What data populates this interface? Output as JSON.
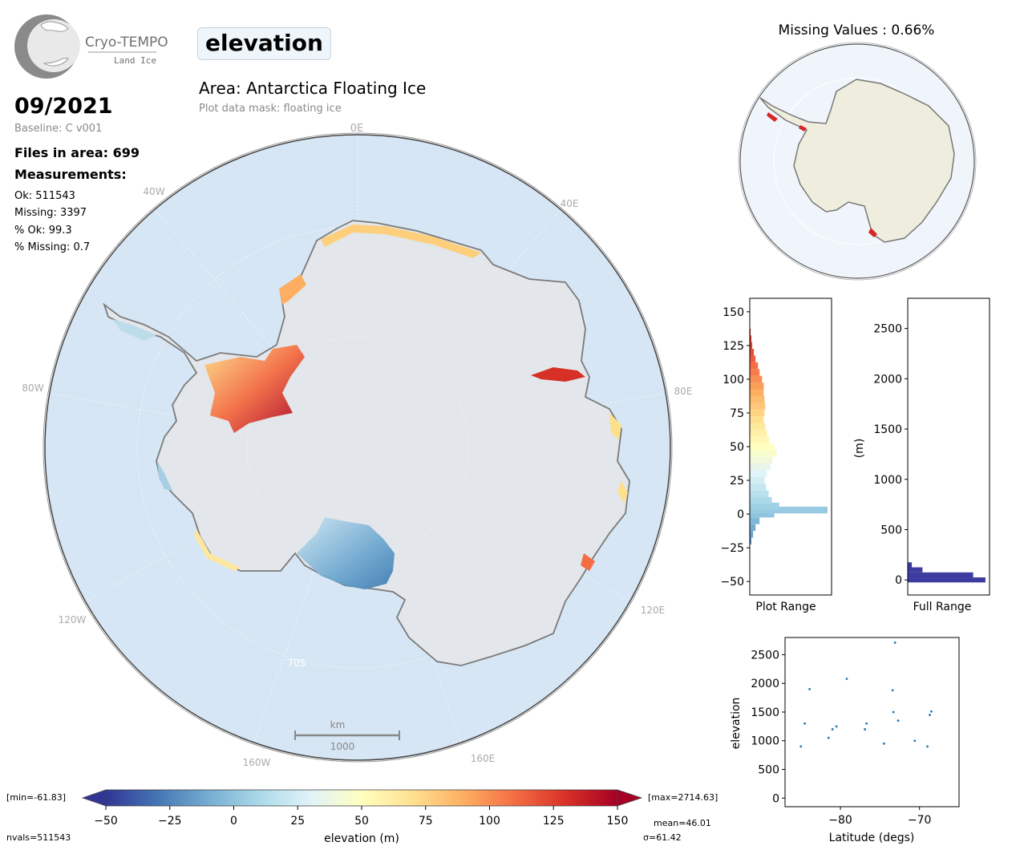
{
  "logo": {
    "name": "Cryo-TEMPO",
    "subtitle": "Land Ice"
  },
  "header": {
    "variable": "elevation",
    "area_title": "Area: Antarctica Floating Ice",
    "mask_note": "Plot data mask: floating ice"
  },
  "info": {
    "date": "09/2021",
    "baseline": "Baseline: C v001",
    "files": "Files in area: 699",
    "measurements_heading": "Measurements:",
    "ok": "Ok: 511543",
    "missing": "Missing: 3397",
    "pct_ok": "% Ok: 99.3",
    "pct_missing": "% Missing: 0.7"
  },
  "map": {
    "graticule_labels": [
      "0E",
      "40E",
      "80E",
      "120E",
      "160E",
      "160W",
      "120W",
      "80W",
      "40W",
      "70S"
    ],
    "scale_bar": {
      "unit": "km",
      "value": "1000"
    }
  },
  "inset_map": {
    "title": "Missing Values : 0.66%"
  },
  "colorbar": {
    "ticks": [
      "−50",
      "−25",
      "0",
      "25",
      "50",
      "75",
      "100",
      "125",
      "150"
    ],
    "label": "elevation (m)",
    "min_label": "[min=-61.83]",
    "max_label": "[max=2714.63]",
    "nvals": "nvals=511543",
    "mean": "mean=46.01",
    "sigma": "σ=61.42",
    "colors": [
      "#313695",
      "#4575b4",
      "#74add1",
      "#abd9e9",
      "#e0f3f8",
      "#ffffbf",
      "#fee090",
      "#fdae61",
      "#f46d43",
      "#d73027",
      "#a50026"
    ]
  },
  "chart_data": [
    {
      "type": "bar",
      "orientation": "horizontal",
      "xlabel": "Plot Range",
      "ylim": [
        -60,
        160
      ],
      "yticks": [
        "−50",
        "−25",
        "0",
        "25",
        "50",
        "75",
        "100",
        "125",
        "150"
      ],
      "bins": [
        {
          "y": -20,
          "count": 2
        },
        {
          "y": -15,
          "count": 4
        },
        {
          "y": -10,
          "count": 7
        },
        {
          "y": -5,
          "count": 12
        },
        {
          "y": 0,
          "count": 30
        },
        {
          "y": 3,
          "count": 95
        },
        {
          "y": 6,
          "count": 36
        },
        {
          "y": 10,
          "count": 27
        },
        {
          "y": 15,
          "count": 23
        },
        {
          "y": 20,
          "count": 20
        },
        {
          "y": 25,
          "count": 18
        },
        {
          "y": 30,
          "count": 21
        },
        {
          "y": 35,
          "count": 25
        },
        {
          "y": 40,
          "count": 28
        },
        {
          "y": 45,
          "count": 33
        },
        {
          "y": 50,
          "count": 30
        },
        {
          "y": 55,
          "count": 24
        },
        {
          "y": 60,
          "count": 21
        },
        {
          "y": 65,
          "count": 19
        },
        {
          "y": 70,
          "count": 17
        },
        {
          "y": 75,
          "count": 18
        },
        {
          "y": 80,
          "count": 19
        },
        {
          "y": 85,
          "count": 18
        },
        {
          "y": 90,
          "count": 17
        },
        {
          "y": 95,
          "count": 17
        },
        {
          "y": 100,
          "count": 15
        },
        {
          "y": 105,
          "count": 12
        },
        {
          "y": 110,
          "count": 10
        },
        {
          "y": 115,
          "count": 7
        },
        {
          "y": 120,
          "count": 5
        },
        {
          "y": 125,
          "count": 3
        },
        {
          "y": 130,
          "count": 2
        },
        {
          "y": 135,
          "count": 1
        }
      ]
    },
    {
      "type": "bar",
      "orientation": "horizontal",
      "xlabel": "Full Range",
      "ylabel": "(m)",
      "ylim": [
        -150,
        2800
      ],
      "yticks": [
        "0",
        "500",
        "1000",
        "1500",
        "2000",
        "2500"
      ],
      "bar_color": "#3b3ba0",
      "bins": [
        {
          "y": 0,
          "count": 95
        },
        {
          "y": 50,
          "count": 80
        },
        {
          "y": 100,
          "count": 18
        },
        {
          "y": 150,
          "count": 5
        }
      ]
    },
    {
      "type": "scatter",
      "xlabel": "Latitude (degs)",
      "ylabel": "elevation",
      "xlim": [
        -87,
        -65
      ],
      "ylim": [
        -150,
        2800
      ],
      "xticks": [
        "−80",
        "−70"
      ],
      "yticks": [
        "0",
        "500",
        "1000",
        "1500",
        "2000",
        "2500"
      ],
      "point_color": "#1f77b4",
      "points": [
        [
          -83.9,
          1900
        ],
        [
          -79.2,
          2080
        ],
        [
          -73.1,
          2710
        ],
        [
          -73.4,
          1880
        ],
        [
          -68.5,
          1510
        ],
        [
          -68.7,
          1450
        ],
        [
          -76.7,
          1300
        ],
        [
          -76.9,
          1200
        ],
        [
          -84.5,
          1300
        ],
        [
          -85.0,
          900
        ],
        [
          -81.5,
          1050
        ],
        [
          -81.0,
          1200
        ],
        [
          -80.5,
          1250
        ],
        [
          -73.3,
          1500
        ],
        [
          -72.7,
          1350
        ],
        [
          -70.6,
          1000
        ],
        [
          -74.5,
          950
        ],
        [
          -69.0,
          900
        ]
      ]
    }
  ]
}
